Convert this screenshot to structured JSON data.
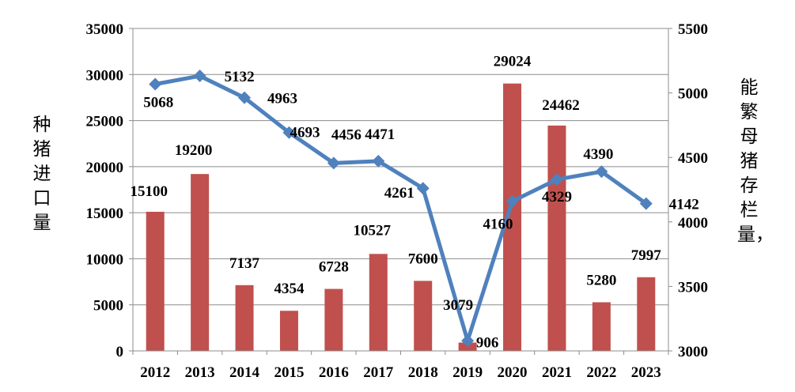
{
  "chart_data": {
    "type": "bar+line",
    "categories": [
      "2012",
      "2013",
      "2014",
      "2015",
      "2016",
      "2017",
      "2018",
      "2019",
      "2020",
      "2021",
      "2022",
      "2023"
    ],
    "series": [
      {
        "name": "种猪进口量",
        "type": "bar",
        "axis": "left",
        "color": "#c0504d",
        "values": [
          15100,
          19200,
          7137,
          4354,
          6728,
          10527,
          7600,
          906,
          29024,
          24462,
          5280,
          7997
        ]
      },
      {
        "name": "能繁母猪存栏量，",
        "type": "line",
        "axis": "right",
        "color": "#4f81bd",
        "values": [
          5068,
          5132,
          4963,
          4693,
          4456,
          4471,
          4261,
          3079,
          4160,
          4329,
          4390,
          4142
        ]
      }
    ],
    "y_left": {
      "label": "种猪进口量",
      "min": 0,
      "max": 35000,
      "ticks": [
        0,
        5000,
        10000,
        15000,
        20000,
        25000,
        30000,
        35000
      ]
    },
    "y_right": {
      "label": "能繁母猪存栏量，",
      "min": 3000,
      "max": 5500,
      "ticks": [
        3000,
        3500,
        4000,
        4500,
        5000,
        5500
      ]
    },
    "grid": true
  }
}
